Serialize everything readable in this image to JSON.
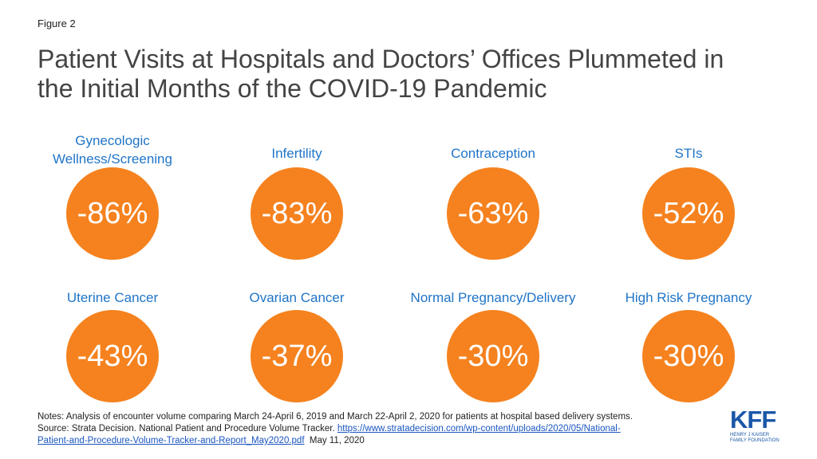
{
  "figure_label": "Figure 2",
  "title_line1": "Patient Visits at Hospitals and Doctors’ Offices Plummeted in",
  "title_line2": "the Initial Months of the COVID-19 Pandemic",
  "colors": {
    "accent": "#f5821f",
    "label": "#1f74c7",
    "title": "#444444"
  },
  "chart_data": {
    "type": "table",
    "title": "Patient Visits at Hospitals and Doctors’ Offices Plummeted in the Initial Months of the COVID-19 Pandemic",
    "unit": "%",
    "categories": [
      "Gynecologic Wellness/Screening",
      "Infertility",
      "Contraception",
      "STIs",
      "Uterine Cancer",
      "Ovarian Cancer",
      "Normal Pregnancy/Delivery",
      "High Risk Pregnancy"
    ],
    "values": [
      -86,
      -83,
      -63,
      -52,
      -43,
      -37,
      -30,
      -30
    ],
    "label_lines": [
      [
        "Gynecologic",
        "Wellness/Screening"
      ],
      [
        "Infertility"
      ],
      [
        "Contraception"
      ],
      [
        "STIs"
      ],
      [
        "Uterine Cancer"
      ],
      [
        "Ovarian Cancer"
      ],
      [
        "Normal Pregnancy/Delivery"
      ],
      [
        "High Risk Pregnancy"
      ]
    ],
    "value_labels": [
      "-86%",
      "-83%",
      "-63%",
      "-52%",
      "-43%",
      "-37%",
      "-30%",
      "-30%"
    ]
  },
  "notes": {
    "line1": "Notes: Analysis of encounter volume comparing March 24-April 6, 2019 and March 22-April 2, 2020 for patients at hospital based delivery systems.",
    "source_prefix": "Source: Strata Decision. National Patient and Procedure Volume Tracker. ",
    "link_part1": "https://www.stratadecision.com/wp-content/uploads/2020/05/National-",
    "link_part2": "Patient-and-Procedure-Volume-Tracker-and-Report_May2020.pdf",
    "source_suffix": "  May 11, 2020"
  },
  "logo": {
    "mark": "KFF",
    "line1": "HENRY J KAISER",
    "line2": "FAMILY FOUNDATION"
  }
}
